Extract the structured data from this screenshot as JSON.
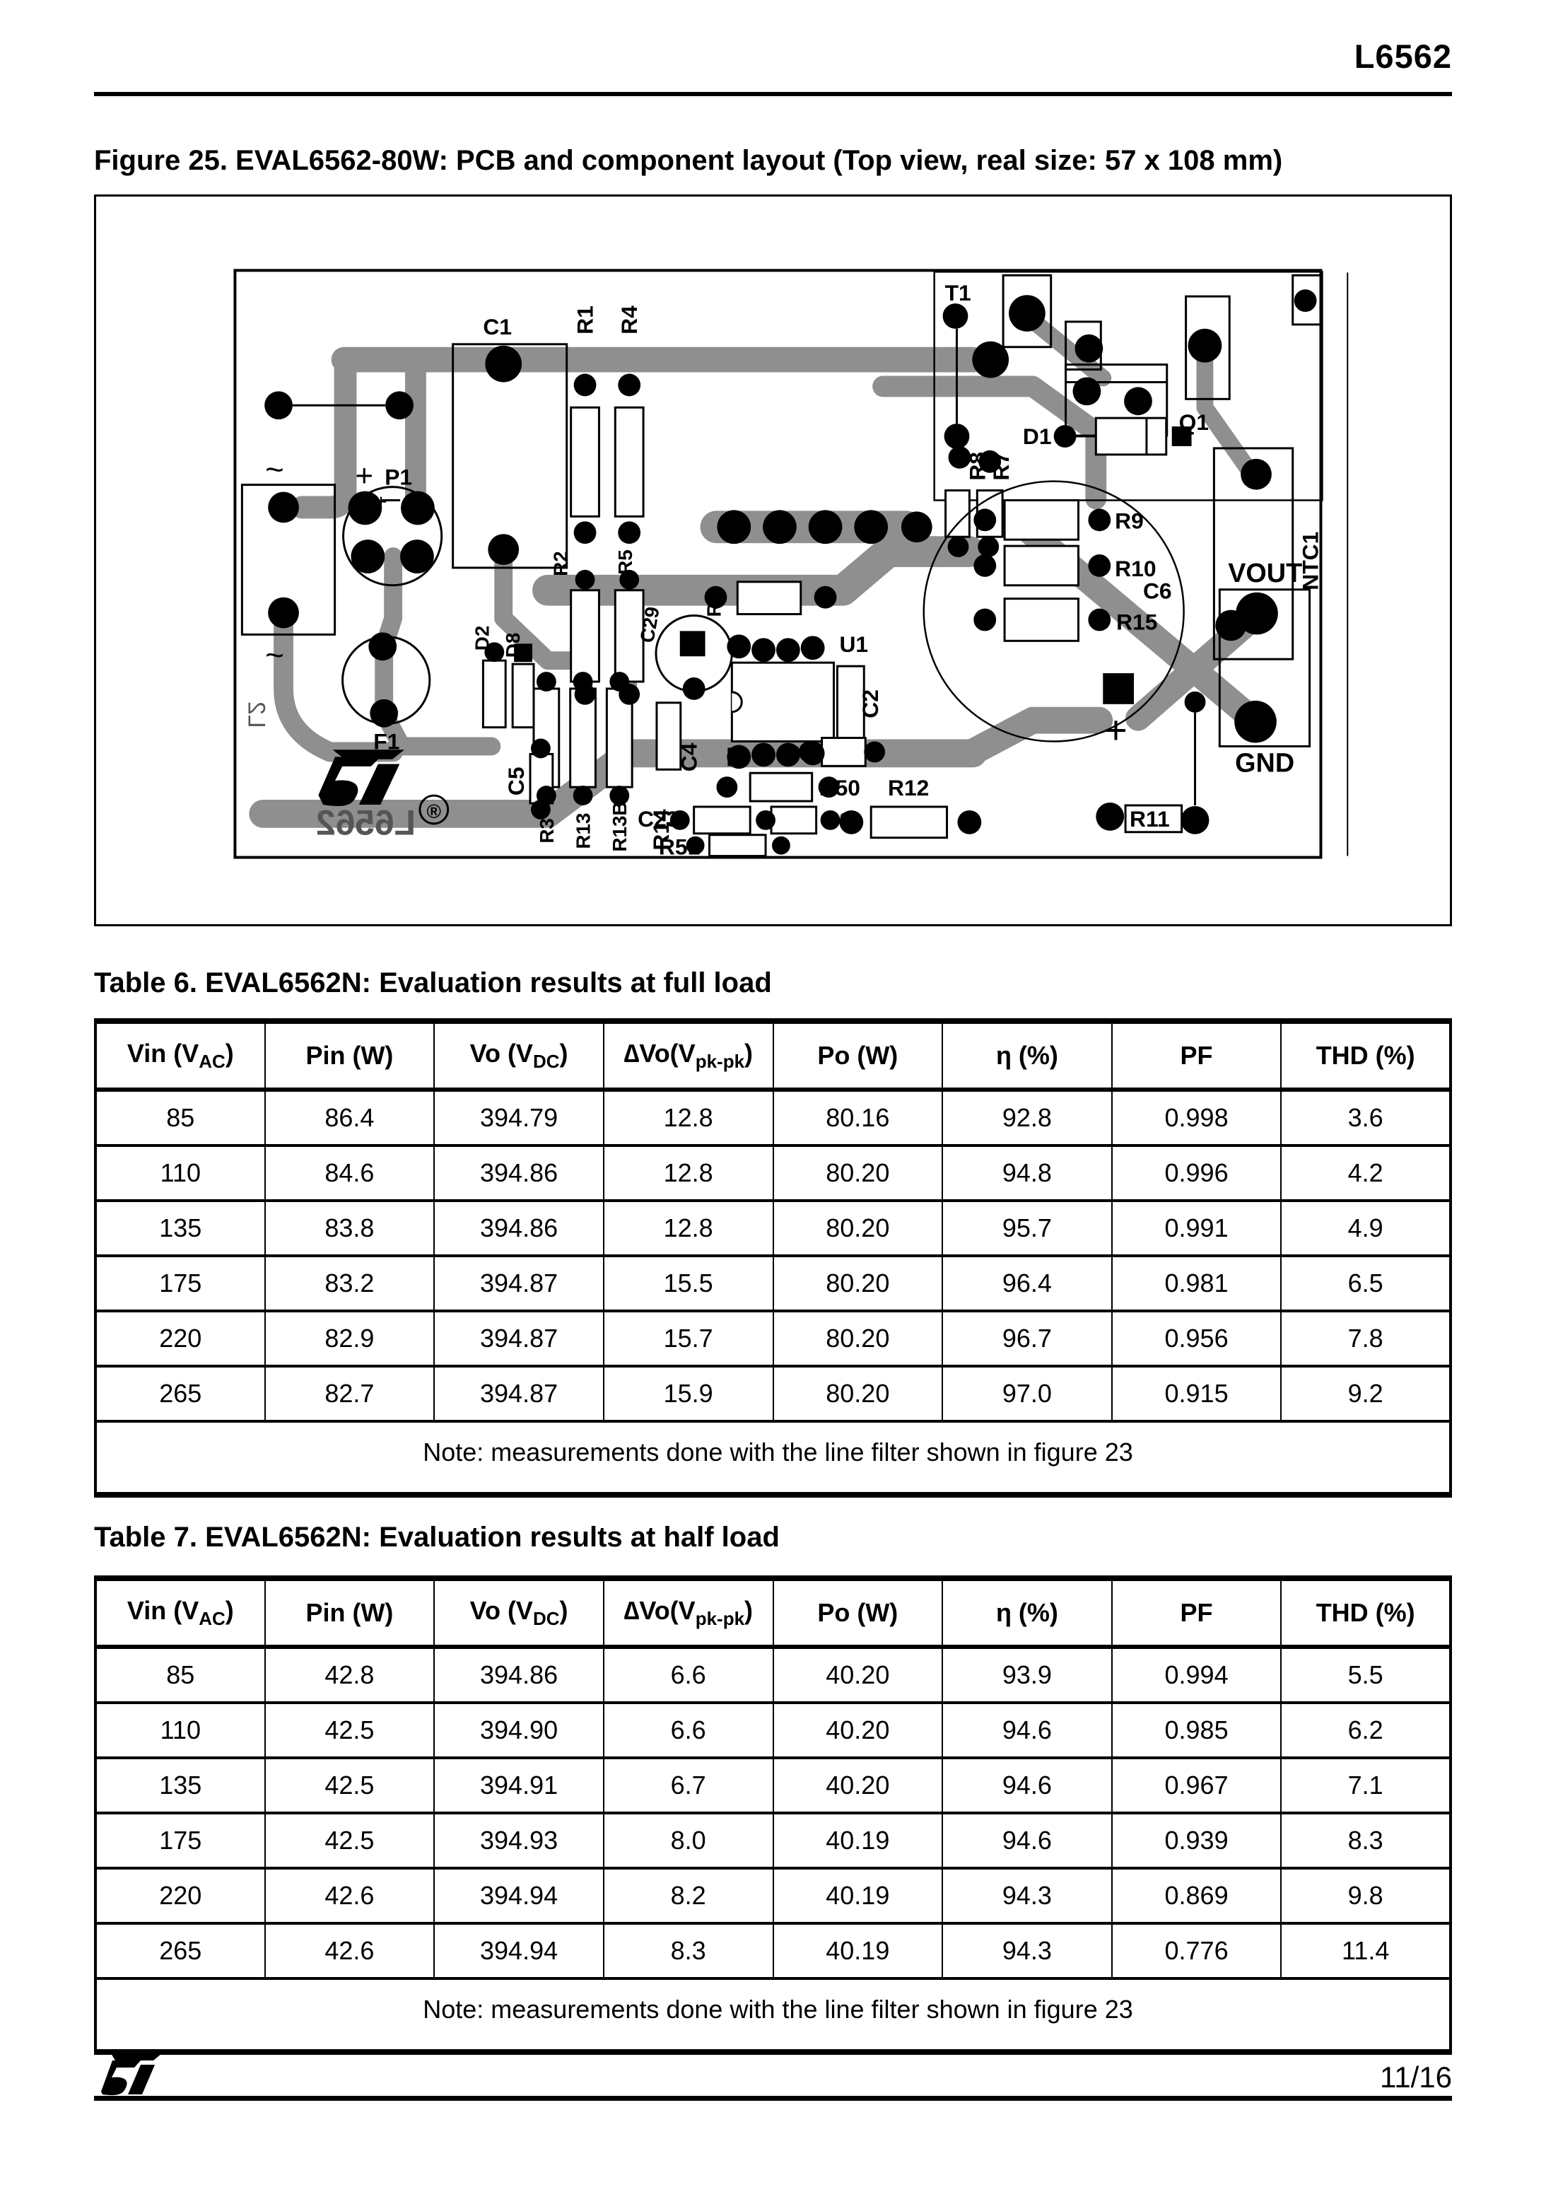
{
  "header": {
    "doc_id": "L6562"
  },
  "figure": {
    "caption": "Figure 25. EVAL6562-80W: PCB and component layout (Top view, real size: 57 x 108 mm)",
    "pcb_labels": {
      "c1": "C1",
      "r1": "R1",
      "r4": "R4",
      "t1": "T1",
      "q1": "Q1",
      "d1": "D1",
      "r8": "R8",
      "r7": "R7",
      "r9": "R9",
      "r10": "R10",
      "r15": "R15",
      "ntc1": "NTC1",
      "vout": "VOUT",
      "c6": "C6",
      "gnd": "GND",
      "r11": "R11",
      "r12": "R12",
      "c3": "C3",
      "r50": "R50",
      "r51": "R51",
      "c23": "C23",
      "c7": "C7",
      "u1": "U1",
      "c2": "C2",
      "c4": "C4",
      "r14": "R14",
      "r13b": "R13B",
      "r13": "R13",
      "r3": "R3",
      "c5": "C5",
      "f1": "F1",
      "p1": "P1",
      "d2": "D2",
      "d8": "D8",
      "r2": "R2",
      "r5": "R5",
      "c29": "C29",
      "r6": "R6",
      "plus": "+",
      "plus_small": "+",
      "tilde_top": "~",
      "tilde_bottom": "~",
      "silk_text": "L6562",
      "edge_text": "L2",
      "reg_mark": "®"
    },
    "colors": {
      "trace_gray": "#8f8f8f",
      "silk_black": "#000000"
    }
  },
  "tables": [
    {
      "caption": "Table 6. EVAL6562N: Evaluation results at full load",
      "headers": [
        {
          "main": "Vin (V",
          "sub": "AC",
          "post": ")"
        },
        {
          "main": "Pin (W)",
          "sub": "",
          "post": ""
        },
        {
          "main": "Vo (V",
          "sub": "DC",
          "post": ")"
        },
        {
          "main": "∆Vo(V",
          "sub": "pk-pk",
          "post": ")"
        },
        {
          "main": "Po (W)",
          "sub": "",
          "post": ""
        },
        {
          "main": "η (%)",
          "sub": "",
          "post": ""
        },
        {
          "main": "PF",
          "sub": "",
          "post": ""
        },
        {
          "main": "THD (%)",
          "sub": "",
          "post": ""
        }
      ],
      "rows": [
        [
          "85",
          "86.4",
          "394.79",
          "12.8",
          "80.16",
          "92.8",
          "0.998",
          "3.6"
        ],
        [
          "110",
          "84.6",
          "394.86",
          "12.8",
          "80.20",
          "94.8",
          "0.996",
          "4.2"
        ],
        [
          "135",
          "83.8",
          "394.86",
          "12.8",
          "80.20",
          "95.7",
          "0.991",
          "4.9"
        ],
        [
          "175",
          "83.2",
          "394.87",
          "15.5",
          "80.20",
          "96.4",
          "0.981",
          "6.5"
        ],
        [
          "220",
          "82.9",
          "394.87",
          "15.7",
          "80.20",
          "96.7",
          "0.956",
          "7.8"
        ],
        [
          "265",
          "82.7",
          "394.87",
          "15.9",
          "80.20",
          "97.0",
          "0.915",
          "9.2"
        ]
      ],
      "note": "Note: measurements done with the line filter shown in figure 23"
    },
    {
      "caption": "Table 7. EVAL6562N: Evaluation results at half load",
      "headers": [
        {
          "main": "Vin (V",
          "sub": "AC",
          "post": ")"
        },
        {
          "main": "Pin (W)",
          "sub": "",
          "post": ""
        },
        {
          "main": "Vo (V",
          "sub": "DC",
          "post": ")"
        },
        {
          "main": "∆Vo(V",
          "sub": "pk-pk",
          "post": ")"
        },
        {
          "main": "Po (W)",
          "sub": "",
          "post": ""
        },
        {
          "main": "η (%)",
          "sub": "",
          "post": ""
        },
        {
          "main": "PF",
          "sub": "",
          "post": ""
        },
        {
          "main": "THD (%)",
          "sub": "",
          "post": ""
        }
      ],
      "rows": [
        [
          "85",
          "42.8",
          "394.86",
          "6.6",
          "40.20",
          "93.9",
          "0.994",
          "5.5"
        ],
        [
          "110",
          "42.5",
          "394.90",
          "6.6",
          "40.20",
          "94.6",
          "0.985",
          "6.2"
        ],
        [
          "135",
          "42.5",
          "394.91",
          "6.7",
          "40.20",
          "94.6",
          "0.967",
          "7.1"
        ],
        [
          "175",
          "42.5",
          "394.93",
          "8.0",
          "40.19",
          "94.6",
          "0.939",
          "8.3"
        ],
        [
          "220",
          "42.6",
          "394.94",
          "8.2",
          "40.19",
          "94.3",
          "0.869",
          "9.8"
        ],
        [
          "265",
          "42.6",
          "394.94",
          "8.3",
          "40.19",
          "94.3",
          "0.776",
          "11.4"
        ]
      ],
      "note": "Note: measurements done with the line filter shown in figure 23"
    }
  ],
  "footer": {
    "page_number": "11/16"
  }
}
